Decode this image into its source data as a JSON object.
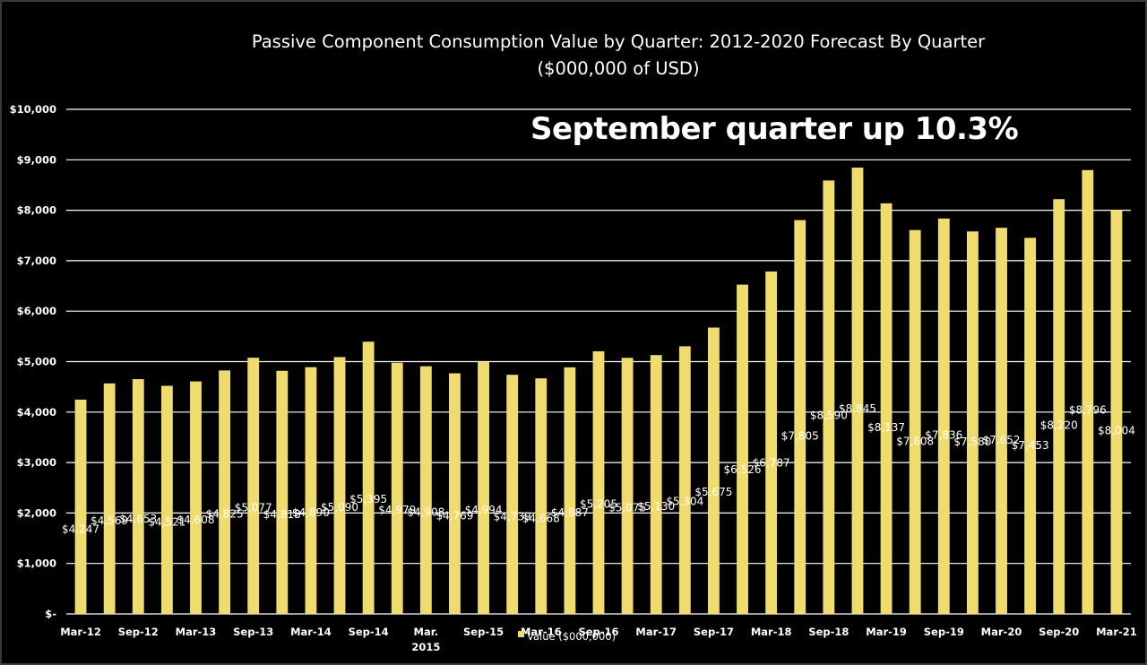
{
  "chart_data": {
    "type": "bar",
    "title": "Passive Component Consumption Value by Quarter: 2012-2020 Forecast By Quarter",
    "subtitle": "($000,000 of USD)",
    "annotation": "September quarter up 10.3%",
    "xlabel": "",
    "ylabel": "",
    "ylim": [
      0,
      10000
    ],
    "yticks": [
      0,
      1000,
      2000,
      3000,
      4000,
      5000,
      6000,
      7000,
      8000,
      9000,
      10000
    ],
    "ytick_labels": [
      "$-",
      "$1,000",
      "$2,000",
      "$3,000",
      "$4,000",
      "$5,000",
      "$6,000",
      "$7,000",
      "$8,000",
      "$9,000",
      "$10,000"
    ],
    "grid": true,
    "legend_position": "bottom",
    "bar_color": "#F0DC6E",
    "categories": [
      "Mar-12",
      "Jun-12",
      "Sep-12",
      "Dec-12",
      "Mar-13",
      "Jun-13",
      "Sep-13",
      "Dec-13",
      "Mar-14",
      "Jun-14",
      "Sep-14",
      "Dec-14",
      "Mar. 2015",
      "Jun-15",
      "Sep-15",
      "Dec-15",
      "Mar-16",
      "Jun-16",
      "Sep-16",
      "Dec-16",
      "Mar-17",
      "Jun-17",
      "Sep-17",
      "Dec-17",
      "Mar-18",
      "Jun-18",
      "Sep-18",
      "Dec-18",
      "Mar-19",
      "Jun-19",
      "Sep-19",
      "Dec-19",
      "Mar-20",
      "Jun-20",
      "Sep-20",
      "Dec-20",
      "Mar-21"
    ],
    "shown_x_labels": [
      "Mar-12",
      "",
      "Sep-12",
      "",
      "Mar-13",
      "",
      "Sep-13",
      "",
      "Mar-14",
      "",
      "Sep-14",
      "",
      "Mar.\n2015",
      "",
      "Sep-15",
      "",
      "Mar-16",
      "",
      "Sep-16",
      "",
      "Mar-17",
      "",
      "Sep-17",
      "",
      "Mar-18",
      "",
      "Sep-18",
      "",
      "Mar-19",
      "",
      "Sep-19",
      "",
      "Mar-20",
      "",
      "Sep-20",
      "",
      "Mar-21"
    ],
    "series": [
      {
        "name": "Value ($000,000)",
        "values": [
          4247,
          4569,
          4653,
          4521,
          4608,
          4825,
          5077,
          4818,
          4890,
          5090,
          5395,
          4979,
          4908,
          4769,
          4994,
          4739,
          4668,
          4887,
          5205,
          5075,
          5130,
          5304,
          5675,
          6526,
          6787,
          7805,
          8590,
          8845,
          8137,
          7608,
          7836,
          7580,
          7652,
          7453,
          8220,
          8796,
          8004
        ],
        "data_labels": [
          "$4,247",
          "$4,569",
          "$4,653",
          "$4,521",
          "$4,608",
          "$4,825",
          "$5,077",
          "$4,818",
          "$4,890",
          "$5,090",
          "$5,395",
          "$4,979",
          "$4,908",
          "$4,769",
          "$4,994",
          "$4,739",
          "$4,668",
          "$4,887",
          "$5,205",
          "$5,075",
          "$5,130",
          "$5,304",
          "$5,675",
          "$6,526",
          "$6,787",
          "$7,805",
          "$8,590",
          "$8,845",
          "$8,137",
          "$7,608",
          "$7,836",
          "$7,580",
          "$7,652",
          "$7,453",
          "$8,220",
          "$8,796",
          "$8,004"
        ]
      }
    ]
  }
}
